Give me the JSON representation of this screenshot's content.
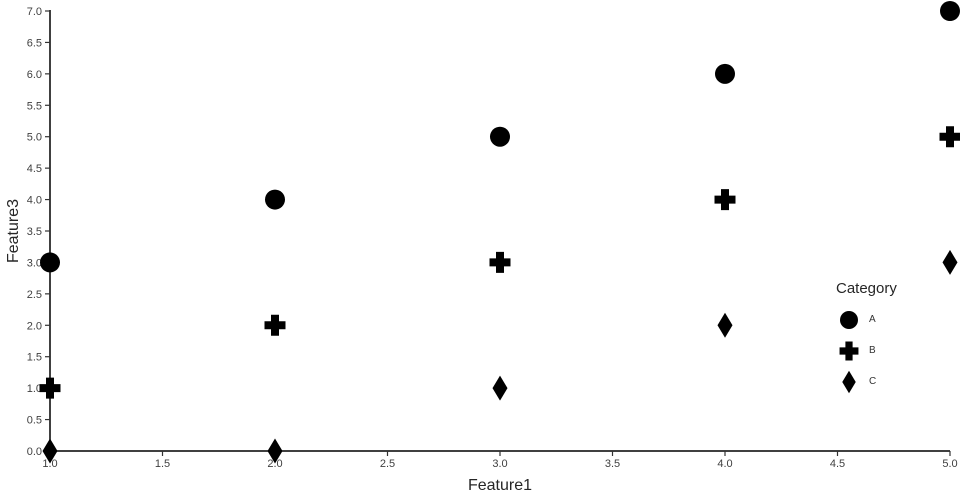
{
  "chart_data": {
    "type": "scatter",
    "title": "",
    "xlabel": "Feature1",
    "ylabel": "Feature3",
    "xlim": [
      1.0,
      5.0
    ],
    "ylim": [
      0.0,
      7.0
    ],
    "x_ticks": [
      1.0,
      1.5,
      2.0,
      2.5,
      3.0,
      3.5,
      4.0,
      4.5,
      5.0
    ],
    "y_ticks": [
      0.0,
      0.5,
      1.0,
      1.5,
      2.0,
      2.5,
      3.0,
      3.5,
      4.0,
      4.5,
      5.0,
      5.5,
      6.0,
      6.5,
      7.0
    ],
    "tick_decimals": 1,
    "grid": false,
    "legend": {
      "title": "Category",
      "position": "right",
      "entries": [
        {
          "label": "A",
          "marker": "circle"
        },
        {
          "label": "B",
          "marker": "plus"
        },
        {
          "label": "C",
          "marker": "diamond"
        }
      ]
    },
    "series": [
      {
        "name": "A",
        "marker": "circle",
        "color": "#000000",
        "x": [
          1,
          2,
          3,
          4,
          5
        ],
        "y": [
          3,
          4,
          5,
          6,
          7
        ]
      },
      {
        "name": "B",
        "marker": "plus",
        "color": "#000000",
        "x": [
          1,
          2,
          3,
          4,
          5
        ],
        "y": [
          1,
          2,
          3,
          4,
          5
        ]
      },
      {
        "name": "C",
        "marker": "diamond",
        "color": "#000000",
        "x": [
          1,
          2,
          3,
          4,
          5
        ],
        "y": [
          0,
          0,
          1,
          2,
          3
        ]
      }
    ]
  },
  "colors": {
    "marker": "#000000",
    "axis_line": "#000000",
    "tick_mark": "#333333",
    "tick_label": "#404040",
    "axis_title": "#262626",
    "legend_title": "#262626",
    "legend_label": "#333333",
    "background": "#ffffff"
  }
}
